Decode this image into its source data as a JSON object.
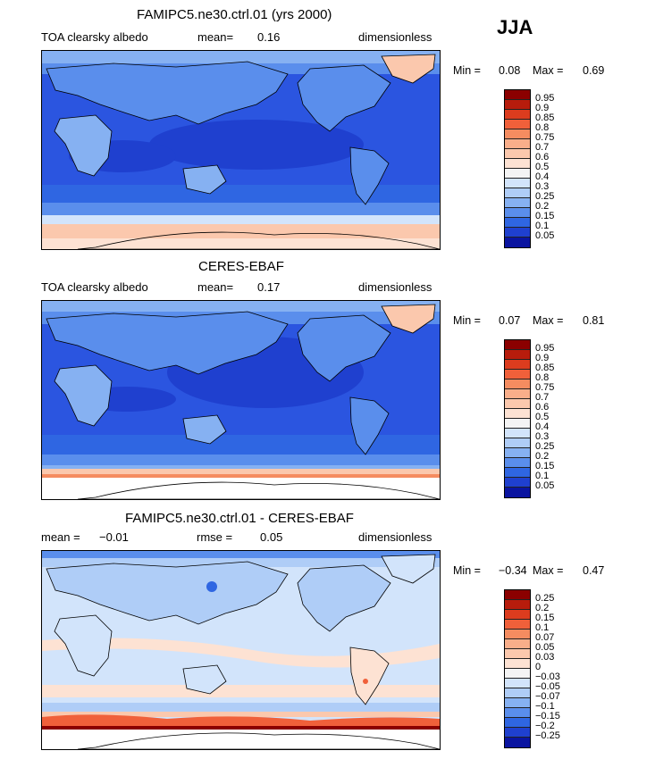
{
  "season": "JJA",
  "panels": [
    {
      "title": "FAMIPC5.ne30.ctrl.01 (yrs 2000)",
      "left_label": "TOA clearsky albedo",
      "stat_label": "mean=",
      "stat_value": "0.16",
      "units": "dimensionless",
      "min_label": "Min =",
      "min_value": "0.08",
      "max_label": "Max =",
      "max_value": "0.69",
      "colorbar": {
        "ticks": [
          "0.95",
          "0.9",
          "0.85",
          "0.8",
          "0.75",
          "0.7",
          "0.6",
          "0.5",
          "0.4",
          "0.3",
          "0.25",
          "0.2",
          "0.15",
          "0.1",
          "0.05"
        ],
        "colors": [
          "#8b0000",
          "#b71c0c",
          "#dc3c1e",
          "#f0603a",
          "#f58c60",
          "#f9ae8a",
          "#fbc8ad",
          "#fde2d3",
          "#f4f4f4",
          "#d2e4fb",
          "#afcdf7",
          "#86b1f2",
          "#5a8eec",
          "#2f66e2",
          "#1f40cf",
          "#0a14a0"
        ]
      }
    },
    {
      "title": "CERES-EBAF",
      "left_label": "TOA clearsky albedo",
      "stat_label": "mean=",
      "stat_value": "0.17",
      "units": "dimensionless",
      "min_label": "Min =",
      "min_value": "0.07",
      "max_label": "Max =",
      "max_value": "0.81",
      "colorbar": {
        "ticks": [
          "0.95",
          "0.9",
          "0.85",
          "0.8",
          "0.75",
          "0.7",
          "0.6",
          "0.5",
          "0.4",
          "0.3",
          "0.25",
          "0.2",
          "0.15",
          "0.1",
          "0.05"
        ],
        "colors": [
          "#8b0000",
          "#b71c0c",
          "#dc3c1e",
          "#f0603a",
          "#f58c60",
          "#f9ae8a",
          "#fbc8ad",
          "#fde2d3",
          "#f4f4f4",
          "#d2e4fb",
          "#afcdf7",
          "#86b1f2",
          "#5a8eec",
          "#2f66e2",
          "#1f40cf",
          "#0a14a0"
        ]
      }
    },
    {
      "title": "FAMIPC5.ne30.ctrl.01 - CERES-EBAF",
      "mean_label": "mean =",
      "mean_value": "−0.01",
      "stat_label": "rmse =",
      "stat_value": "0.05",
      "units": "dimensionless",
      "min_label": "Min =",
      "min_value": "−0.34",
      "max_label": "Max =",
      "max_value": "0.47",
      "colorbar": {
        "ticks": [
          "0.25",
          "0.2",
          "0.15",
          "0.1",
          "0.07",
          "0.05",
          "0.03",
          "0",
          "−0.03",
          "−0.05",
          "−0.07",
          "−0.1",
          "−0.15",
          "−0.2",
          "−0.25"
        ],
        "colors": [
          "#8b0000",
          "#b71c0c",
          "#dc3c1e",
          "#f0603a",
          "#f58c60",
          "#f9ae8a",
          "#fbc8ad",
          "#fde2d3",
          "#f4f4f4",
          "#d2e4fb",
          "#afcdf7",
          "#86b1f2",
          "#5a8eec",
          "#2f66e2",
          "#1f40cf",
          "#0a14a0"
        ]
      }
    }
  ]
}
